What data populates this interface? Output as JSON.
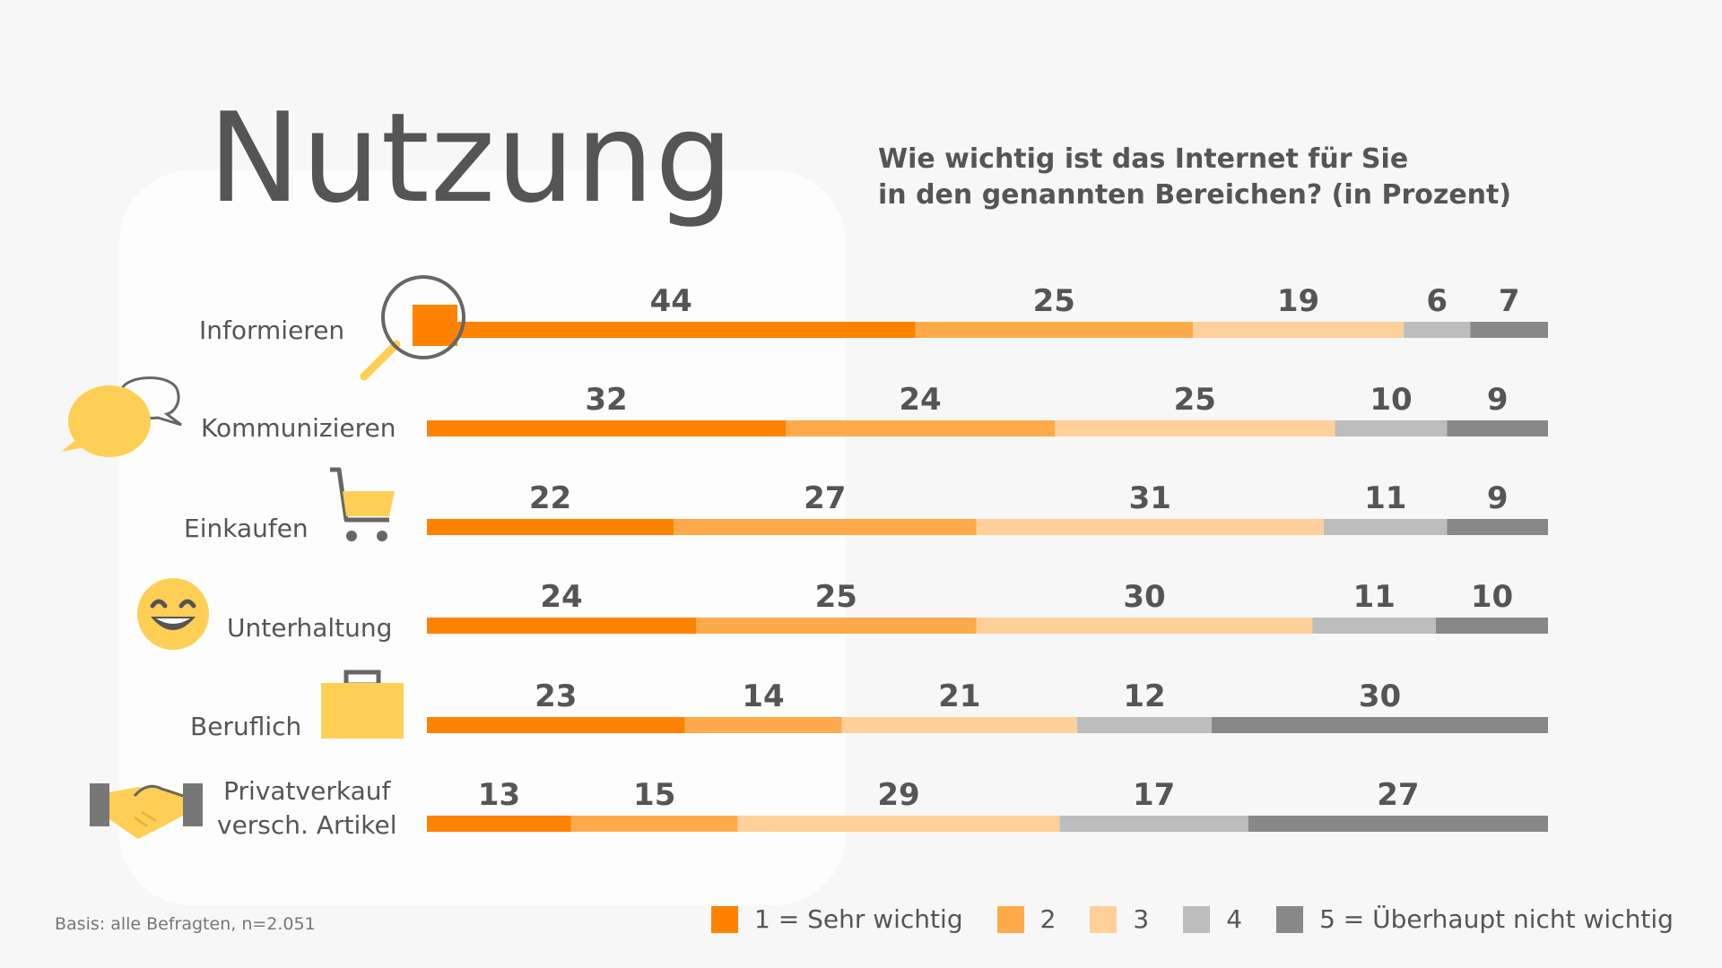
{
  "title": "Nutzung",
  "question": {
    "line1": "Wie wichtig ist das Internet für Sie",
    "line2": "in den genannten Bereichen? (in Prozent)"
  },
  "footnote": "Basis: alle Befragten, n=2.051",
  "colors": [
    "#ff8200",
    "#ffaa4a",
    "#ffd09a",
    "#bdbdbd",
    "#888888"
  ],
  "categories": [
    {
      "label": [
        "Informieren"
      ],
      "icon": "magnifier-icon"
    },
    {
      "label": [
        "Kommunizieren"
      ],
      "icon": "speech-bubbles-icon"
    },
    {
      "label": [
        "Einkaufen"
      ],
      "icon": "shopping-cart-icon"
    },
    {
      "label": [
        "Unterhaltung"
      ],
      "icon": "smiley-icon"
    },
    {
      "label": [
        "Beruflich"
      ],
      "icon": "briefcase-icon"
    },
    {
      "label": [
        "Privatverkauf",
        "versch. Artikel"
      ],
      "icon": "handshake-icon"
    }
  ],
  "chart_data": {
    "type": "bar",
    "orientation": "horizontal",
    "stacked": true,
    "unit": "Prozent",
    "categories": [
      "Informieren",
      "Kommunizieren",
      "Einkaufen",
      "Unterhaltung",
      "Beruflich",
      "Privatverkauf versch. Artikel"
    ],
    "series": [
      {
        "name": "1 = Sehr wichtig",
        "values": [
          44,
          32,
          22,
          24,
          23,
          13
        ]
      },
      {
        "name": "2",
        "values": [
          25,
          24,
          27,
          25,
          14,
          15
        ]
      },
      {
        "name": "3",
        "values": [
          19,
          25,
          31,
          30,
          21,
          29
        ]
      },
      {
        "name": "4",
        "values": [
          6,
          10,
          11,
          11,
          12,
          17
        ]
      },
      {
        "name": "5 = Überhaupt nicht wichtig",
        "values": [
          7,
          9,
          9,
          10,
          30,
          27
        ]
      }
    ],
    "legend_position": "bottom"
  }
}
